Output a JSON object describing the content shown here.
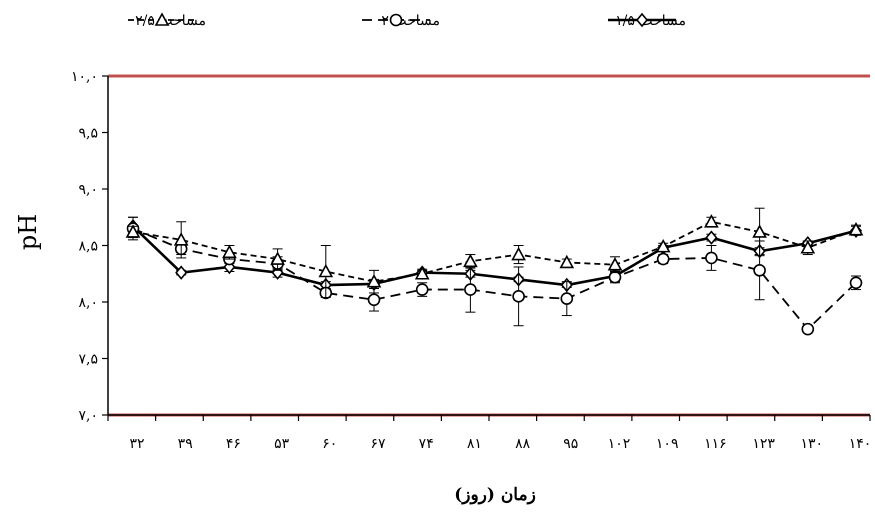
{
  "chart_data": {
    "type": "line",
    "title": "",
    "xlabel": "زمان (روز)",
    "ylabel": "pH",
    "x": [
      "۳۲",
      "۳۹",
      "۴۶",
      "۵۳",
      "۶۰",
      "۶۷",
      "۷۴",
      "۸۱",
      "۸۸",
      "۹۵",
      "۱۰۲",
      "۱۰۹",
      "۱۱۶",
      "۱۲۳",
      "۱۳۰",
      "۱۴۰"
    ],
    "ylim": [
      7.0,
      10.0
    ],
    "yticks": [
      {
        "value": 7.0,
        "label": "۷,۰"
      },
      {
        "value": 7.5,
        "label": "۷,۵"
      },
      {
        "value": 8.0,
        "label": "۸,۰"
      },
      {
        "value": 8.5,
        "label": "۸,۵"
      },
      {
        "value": 9.0,
        "label": "۹,۰"
      },
      {
        "value": 9.5,
        "label": "۹,۵"
      },
      {
        "value": 10.0,
        "label": "۱۰,۰"
      }
    ],
    "reference_lines": [
      {
        "value": 10.0,
        "color": "#c0504d"
      },
      {
        "value": 7.0,
        "color": "#c0504d"
      }
    ],
    "legend_position": "top",
    "grid": false,
    "series": [
      {
        "name": "مساحت ۱/۵",
        "marker": "diamond",
        "dash": "solid",
        "values": [
          8.67,
          8.26,
          8.31,
          8.26,
          8.15,
          8.16,
          8.26,
          8.25,
          8.2,
          8.15,
          8.23,
          8.48,
          8.57,
          8.45,
          8.52,
          8.63
        ],
        "errors": [
          0.08,
          0.02,
          0.04,
          0.04,
          0.03,
          0.04,
          0.02,
          0.03,
          0.02,
          0.02,
          0.05,
          0.02,
          0.03,
          0.03,
          0.02,
          0.04
        ]
      },
      {
        "name": "مساحت ۲",
        "marker": "circle",
        "dash": "long-dash",
        "values": [
          8.65,
          8.47,
          8.38,
          8.34,
          8.08,
          8.02,
          8.11,
          8.11,
          8.05,
          8.03,
          8.22,
          8.38,
          8.39,
          8.28,
          7.76,
          8.17
        ],
        "errors": [
          0.1,
          0.05,
          0.04,
          0.06,
          0.02,
          0.1,
          0.06,
          0.2,
          0.26,
          0.15,
          0.05,
          0.04,
          0.11,
          0.26,
          0.02,
          0.06
        ]
      },
      {
        "name": "مساحت ۲/۵",
        "marker": "triangle",
        "dash": "short-dash",
        "values": [
          8.62,
          8.55,
          8.44,
          8.38,
          8.27,
          8.18,
          8.25,
          8.36,
          8.42,
          8.35,
          8.33,
          8.49,
          8.71,
          8.62,
          8.48,
          8.64
        ],
        "errors": [
          0.05,
          0.16,
          0.06,
          0.09,
          0.23,
          0.1,
          0.04,
          0.06,
          0.08,
          0.03,
          0.07,
          0.03,
          0.04,
          0.21,
          0.06,
          0.04
        ]
      }
    ]
  }
}
